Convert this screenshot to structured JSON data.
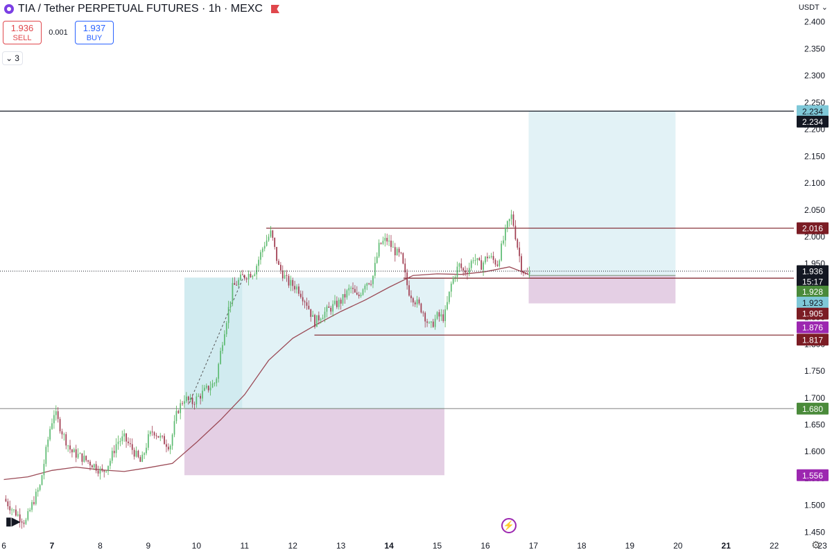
{
  "header": {
    "title": "TIA / Tether PERPETUAL FUTURES · 1h · MEXC",
    "sell_price": "1.936",
    "sell_label": "SELL",
    "spread": "0.001",
    "buy_price": "1.937",
    "buy_label": "BUY",
    "indicators_count": "3",
    "currency": "USDT"
  },
  "chart_data": {
    "type": "candlestick",
    "symbol": "TIA / Tether PERPETUAL FUTURES",
    "interval": "1h",
    "exchange": "MEXC",
    "x_tick_labels": [
      "6",
      "7",
      "8",
      "9",
      "10",
      "11",
      "12",
      "13",
      "14",
      "15",
      "16",
      "17",
      "18",
      "19",
      "20",
      "21",
      "22",
      "23"
    ],
    "x_tick_bold": [
      "7",
      "14",
      "21"
    ],
    "x_range": [
      5.92,
      23.2
    ],
    "y_tick_values": [
      1.45,
      1.5,
      1.55,
      1.6,
      1.65,
      1.7,
      1.75,
      1.8,
      1.85,
      1.9,
      1.95,
      2.0,
      2.05,
      2.1,
      2.15,
      2.2,
      2.25,
      2.3,
      2.35,
      2.4
    ],
    "y_tick_labels": [
      "1.450",
      "1.500",
      "1.550",
      "1.600",
      "1.650",
      "1.700",
      "1.750",
      "1.800",
      "1.850",
      "1.900",
      "1.950",
      "2.000",
      "2.050",
      "2.100",
      "2.150",
      "2.200",
      "2.250",
      "2.300",
      "2.350",
      "2.400"
    ],
    "y_range": [
      1.413,
      2.441
    ],
    "grid": false,
    "colors": {
      "up": "#26a69a",
      "down": "#a03c50",
      "up_wick": "#4caf50",
      "moving_average": "#9b4a56",
      "target_zone": "#bfe3ea",
      "stop_zone": "#d9bbd9",
      "price_line": "#131722"
    },
    "anchors": [
      [
        6.0,
        1.512
      ],
      [
        6.2,
        1.49
      ],
      [
        6.45,
        1.468
      ],
      [
        6.6,
        1.505
      ],
      [
        6.75,
        1.535
      ],
      [
        6.95,
        1.64
      ],
      [
        7.05,
        1.675
      ],
      [
        7.15,
        1.65
      ],
      [
        7.25,
        1.628
      ],
      [
        7.4,
        1.6
      ],
      [
        7.6,
        1.59
      ],
      [
        7.9,
        1.573
      ],
      [
        8.05,
        1.56
      ],
      [
        8.2,
        1.582
      ],
      [
        8.35,
        1.618
      ],
      [
        8.5,
        1.625
      ],
      [
        8.7,
        1.6
      ],
      [
        8.85,
        1.578
      ],
      [
        9.0,
        1.625
      ],
      [
        9.1,
        1.64
      ],
      [
        9.25,
        1.625
      ],
      [
        9.45,
        1.61
      ],
      [
        9.6,
        1.675
      ],
      [
        9.75,
        1.7
      ],
      [
        9.9,
        1.69
      ],
      [
        10.2,
        1.715
      ],
      [
        10.4,
        1.73
      ],
      [
        10.55,
        1.812
      ],
      [
        10.75,
        1.905
      ],
      [
        10.95,
        1.925
      ],
      [
        11.2,
        1.935
      ],
      [
        11.4,
        1.985
      ],
      [
        11.55,
        2.008
      ],
      [
        11.7,
        1.945
      ],
      [
        11.9,
        1.915
      ],
      [
        12.1,
        1.905
      ],
      [
        12.3,
        1.875
      ],
      [
        12.45,
        1.84
      ],
      [
        12.6,
        1.855
      ],
      [
        12.8,
        1.868
      ],
      [
        13.0,
        1.88
      ],
      [
        13.2,
        1.905
      ],
      [
        13.35,
        1.885
      ],
      [
        13.5,
        1.915
      ],
      [
        13.65,
        1.92
      ],
      [
        13.8,
        1.985
      ],
      [
        13.95,
        1.995
      ],
      [
        14.1,
        1.975
      ],
      [
        14.25,
        1.962
      ],
      [
        14.4,
        1.9
      ],
      [
        14.55,
        1.88
      ],
      [
        14.7,
        1.862
      ],
      [
        14.85,
        1.83
      ],
      [
        15.0,
        1.852
      ],
      [
        15.15,
        1.85
      ],
      [
        15.3,
        1.915
      ],
      [
        15.45,
        1.948
      ],
      [
        15.55,
        1.935
      ],
      [
        15.65,
        1.94
      ],
      [
        15.75,
        1.962
      ],
      [
        15.9,
        1.945
      ],
      [
        16.05,
        1.965
      ],
      [
        16.25,
        1.95
      ],
      [
        16.45,
        2.02
      ],
      [
        16.55,
        2.04
      ],
      [
        16.65,
        1.99
      ],
      [
        16.75,
        1.945
      ],
      [
        16.85,
        1.925
      ],
      [
        16.95,
        1.936
      ]
    ],
    "moving_average": [
      [
        6.0,
        1.548
      ],
      [
        6.5,
        1.553
      ],
      [
        7.0,
        1.565
      ],
      [
        7.5,
        1.571
      ],
      [
        8.0,
        1.566
      ],
      [
        8.5,
        1.563
      ],
      [
        9.0,
        1.57
      ],
      [
        9.5,
        1.578
      ],
      [
        10.0,
        1.617
      ],
      [
        10.5,
        1.659
      ],
      [
        11.0,
        1.706
      ],
      [
        11.5,
        1.77
      ],
      [
        12.0,
        1.811
      ],
      [
        12.5,
        1.837
      ],
      [
        13.0,
        1.861
      ],
      [
        13.5,
        1.882
      ],
      [
        14.0,
        1.906
      ],
      [
        14.5,
        1.928
      ],
      [
        15.0,
        1.931
      ],
      [
        15.5,
        1.93
      ],
      [
        16.0,
        1.935
      ],
      [
        16.5,
        1.944
      ],
      [
        16.9,
        1.93
      ]
    ],
    "horizontal_lines": [
      {
        "y": 2.234,
        "color": "#131722",
        "x_from": 5.92,
        "x_to": 23.2
      },
      {
        "y": 2.016,
        "color": "#7b1c24",
        "x_from": 11.45,
        "x_to": 23.2
      },
      {
        "y": 1.923,
        "color": "#7b1c24",
        "x_from": 14.3,
        "x_to": 23.2
      },
      {
        "y": 1.817,
        "color": "#7b1c24",
        "x_from": 12.45,
        "x_to": 23.2
      },
      {
        "y": 1.68,
        "color": "#9a9a9a",
        "x_from": 5.92,
        "x_to": 23.2
      }
    ],
    "position_zones": [
      {
        "kind": "long",
        "x_from": 9.75,
        "x_to": 15.15,
        "entry": 1.68,
        "target": 1.924,
        "stop": 1.556
      },
      {
        "kind": "long",
        "x_from": 16.9,
        "x_to": 19.95,
        "entry": 1.928,
        "target": 2.234,
        "stop": 1.876
      }
    ],
    "current_price": 1.936,
    "countdown": "15:17",
    "price_labels": [
      {
        "text": "2.234",
        "y": 2.234,
        "bg": "#7fc8d8",
        "fg": "#131722"
      },
      {
        "text": "2.234",
        "y": 2.2145,
        "bg": "#131722",
        "fg": "#ffffff"
      },
      {
        "text": "2.016",
        "y": 2.016,
        "bg": "#7b1c24",
        "fg": "#ffffff"
      },
      {
        "text": "1.936",
        "y": 1.936,
        "bg": "#131722",
        "fg": "#ffffff"
      },
      {
        "text": "15:17",
        "y": 1.9165,
        "bg": "#131722",
        "fg": "#ffffff"
      },
      {
        "text": "1.928",
        "y": 1.898,
        "bg": "#4a8a3a",
        "fg": "#ffffff"
      },
      {
        "text": "1.923",
        "y": 1.8775,
        "bg": "#7fc8d8",
        "fg": "#131722"
      },
      {
        "text": "1.905",
        "y": 1.857,
        "bg": "#7b1c24",
        "fg": "#ffffff"
      },
      {
        "text": "1.876",
        "y": 1.8315,
        "bg": "#9c27b0",
        "fg": "#ffffff"
      },
      {
        "text": "1.817",
        "y": 1.8085,
        "bg": "#7b1c24",
        "fg": "#ffffff"
      },
      {
        "text": "1.680",
        "y": 1.68,
        "bg": "#4a8a3a",
        "fg": "#ffffff"
      },
      {
        "text": "1.556",
        "y": 1.556,
        "bg": "#9c27b0",
        "fg": "#ffffff"
      }
    ]
  }
}
